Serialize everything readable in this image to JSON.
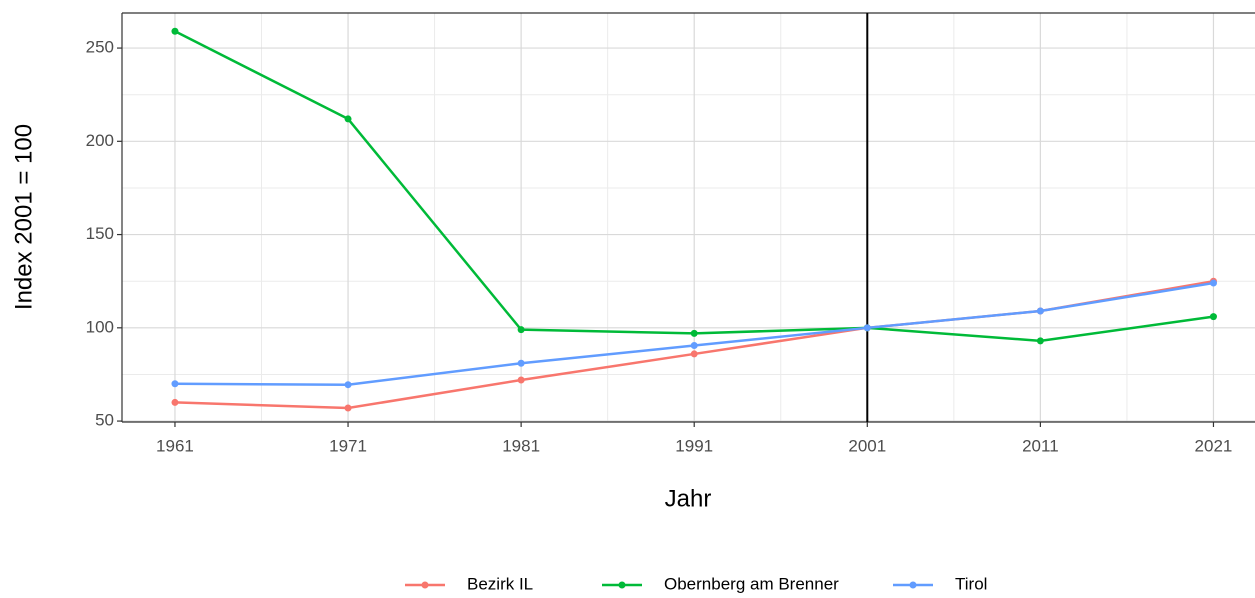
{
  "chart_data": {
    "type": "line",
    "x_label": "Jahr",
    "y_label": "Index 2001 = 100",
    "x": [
      1961,
      1971,
      1981,
      1991,
      2001,
      2011,
      2021
    ],
    "series": [
      {
        "name": "Bezirk IL",
        "color": "#F8766D",
        "values": [
          60,
          57,
          72,
          86,
          100,
          109,
          125
        ]
      },
      {
        "name": "Obernberg am Brenner",
        "color": "#00BA38",
        "values": [
          259,
          212,
          99,
          97,
          100,
          93,
          106
        ]
      },
      {
        "name": "Tirol",
        "color": "#619CFF",
        "values": [
          70,
          69.5,
          81,
          90.5,
          100,
          109,
          124
        ]
      }
    ],
    "xlim": [
      1957.94,
      2023.4
    ],
    "ylim": [
      49.5,
      268.8
    ],
    "xticks": [
      1961,
      1971,
      1981,
      1991,
      2001,
      2011,
      2021
    ],
    "yticks": [
      50,
      100,
      150,
      200,
      250
    ],
    "vline": 2001,
    "grid": true,
    "legend": "bottom"
  }
}
